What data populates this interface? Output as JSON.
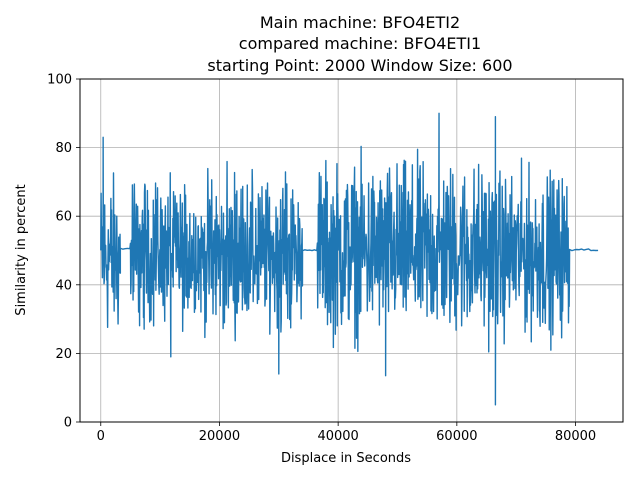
{
  "chart_data": {
    "type": "line",
    "title_lines": [
      "Main machine: BFO4ETI2",
      "compared machine: BFO4ETI1",
      "starting Point: 2000  Window Size: 600"
    ],
    "xlabel": "Displace in Seconds",
    "ylabel": "Similarity in percent",
    "xlim": [
      -3500,
      88000
    ],
    "ylim": [
      0,
      100
    ],
    "xticks": [
      0,
      20000,
      40000,
      60000,
      80000
    ],
    "yticks": [
      0,
      20,
      40,
      60,
      80,
      100
    ],
    "grid": true,
    "series_color": "#1f77b4",
    "segments": [
      {
        "x_start": 0,
        "x_end": 3300,
        "center": 48,
        "amplitude": 30
      },
      {
        "x_start": 3300,
        "x_end": 5000,
        "center": 50.5,
        "amplitude": 0.5
      },
      {
        "x_start": 5000,
        "x_end": 34000,
        "center": 49,
        "amplitude": 28
      },
      {
        "x_start": 34000,
        "x_end": 36500,
        "center": 50.2,
        "amplitude": 0.5
      },
      {
        "x_start": 36500,
        "x_end": 66000,
        "center": 50,
        "amplitude": 32
      },
      {
        "x_start": 66000,
        "x_end": 79000,
        "center": 49,
        "amplitude": 30
      },
      {
        "x_start": 79000,
        "x_end": 84000,
        "center": 50.2,
        "amplitude": 0.5
      }
    ],
    "notable_points": [
      {
        "x": 400,
        "y": 83
      },
      {
        "x": 57000,
        "y": 90
      },
      {
        "x": 66500,
        "y": 89
      },
      {
        "x": 66500,
        "y": 5
      },
      {
        "x": 48000,
        "y": 13.5
      },
      {
        "x": 30000,
        "y": 14
      },
      {
        "x": 11800,
        "y": 19
      }
    ]
  }
}
